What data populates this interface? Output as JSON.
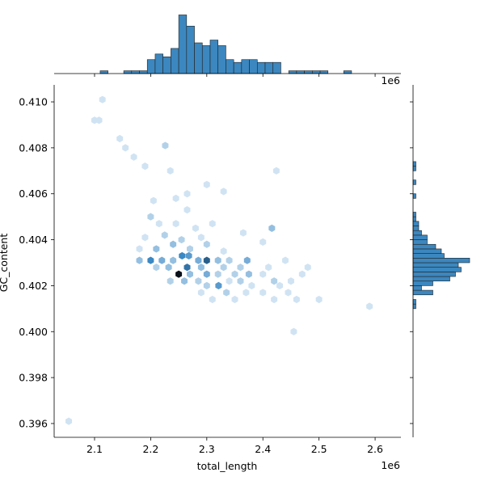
{
  "chart_data": [
    {
      "type": "hexbin",
      "x_label": "total_length",
      "y_label": "GC_content",
      "x_offset_label": "1e6",
      "x": [
        2.054,
        2.114,
        2.1,
        2.108,
        2.145,
        2.155,
        2.17,
        2.226,
        2.235,
        2.19,
        2.265,
        2.245,
        2.3,
        2.33,
        2.424,
        2.205,
        2.265,
        2.2,
        2.215,
        2.245,
        2.28,
        2.31,
        2.19,
        2.225,
        2.255,
        2.29,
        2.365,
        2.416,
        2.18,
        2.21,
        2.24,
        2.27,
        2.3,
        2.33,
        2.4,
        2.18,
        2.2,
        2.22,
        2.24,
        2.285,
        2.3,
        2.32,
        2.34,
        2.372,
        2.44,
        2.256,
        2.268,
        2.21,
        2.232,
        2.265,
        2.29,
        2.33,
        2.36,
        2.41,
        2.48,
        2.25,
        2.27,
        2.3,
        2.32,
        2.35,
        2.375,
        2.4,
        2.47,
        2.235,
        2.26,
        2.285,
        2.34,
        2.36,
        2.42,
        2.45,
        2.321,
        2.3,
        2.38,
        2.43,
        2.29,
        2.335,
        2.4,
        2.445,
        2.37,
        2.31,
        2.35,
        2.42,
        2.5,
        2.46,
        2.59,
        2.455
      ],
      "y": [
        0.3961,
        0.4101,
        0.4092,
        0.4092,
        0.4084,
        0.408,
        0.4076,
        0.4081,
        0.407,
        0.4072,
        0.406,
        0.4058,
        0.4064,
        0.4061,
        0.407,
        0.4057,
        0.4053,
        0.405,
        0.4047,
        0.4047,
        0.4045,
        0.4047,
        0.4041,
        0.4042,
        0.404,
        0.4041,
        0.4043,
        0.4045,
        0.4036,
        0.4036,
        0.4038,
        0.4036,
        0.4038,
        0.4035,
        0.4039,
        0.4031,
        0.4031,
        0.4031,
        0.4031,
        0.4031,
        0.4031,
        0.4031,
        0.4031,
        0.4031,
        0.4031,
        0.4033,
        0.4033,
        0.4028,
        0.4028,
        0.4028,
        0.4028,
        0.4028,
        0.4028,
        0.4028,
        0.4028,
        0.4025,
        0.4025,
        0.4025,
        0.4025,
        0.4025,
        0.4025,
        0.4025,
        0.4025,
        0.4022,
        0.4022,
        0.4022,
        0.4022,
        0.4022,
        0.4022,
        0.4022,
        0.402,
        0.402,
        0.402,
        0.402,
        0.4017,
        0.4017,
        0.4017,
        0.4017,
        0.4017,
        0.4014,
        0.4014,
        0.4014,
        0.4014,
        0.4014,
        0.4011,
        0.4
      ],
      "counts": [
        1,
        1,
        1,
        1,
        1,
        1,
        1,
        2,
        1,
        1,
        1,
        1,
        1,
        1,
        1,
        1,
        1,
        2,
        1,
        1,
        1,
        1,
        1,
        2,
        2,
        1,
        1,
        3,
        1,
        3,
        3,
        2,
        2,
        1,
        1,
        3,
        6,
        4,
        3,
        4,
        8,
        3,
        2,
        4,
        1,
        6,
        5,
        2,
        3,
        7,
        3,
        2,
        2,
        1,
        1,
        12,
        3,
        4,
        2,
        2,
        3,
        1,
        1,
        2,
        3,
        2,
        1,
        2,
        2,
        1,
        5,
        2,
        1,
        1,
        1,
        2,
        1,
        1,
        1,
        1,
        1,
        1,
        1,
        1,
        1,
        1
      ],
      "cmap": [
        "#eef5fc",
        "#3a88c4",
        "#08101a"
      ],
      "xlim": [
        2.028,
        2.646
      ],
      "ylim": [
        0.3954,
        0.41074
      ],
      "xticks": [
        2.1,
        2.2,
        2.3,
        2.4,
        2.5,
        2.6
      ],
      "yticks": [
        {
          "value": 0.396,
          "label": "0.396"
        },
        {
          "value": 0.398,
          "label": "0.398"
        },
        {
          "value": 0.4,
          "label": "0.400"
        },
        {
          "value": 0.402,
          "label": "0.402"
        },
        {
          "value": 0.404,
          "label": "0.404"
        },
        {
          "value": 0.406,
          "label": "0.406"
        },
        {
          "value": 0.408,
          "label": "0.408"
        },
        {
          "value": 0.41,
          "label": "0.410"
        }
      ]
    },
    {
      "type": "histogram",
      "orientation": "vertical",
      "x_offset_label": "1e6",
      "color": "#3c87bf",
      "edgecolor": "#222222",
      "bins": [
        2.054,
        2.068,
        2.082,
        2.096,
        2.11,
        2.124,
        2.138,
        2.152,
        2.166,
        2.18,
        2.194,
        2.208,
        2.222,
        2.236,
        2.25,
        2.264,
        2.278,
        2.292,
        2.306,
        2.32,
        2.334,
        2.348,
        2.362,
        2.376,
        2.39,
        2.404,
        2.418,
        2.432,
        2.446,
        2.46,
        2.474,
        2.488,
        2.502,
        2.516,
        2.53,
        2.544,
        2.558,
        2.572,
        2.586,
        2.6
      ],
      "counts": [
        0,
        0,
        0,
        0,
        1,
        0,
        0,
        1,
        1,
        1,
        5,
        7,
        6,
        9,
        21,
        17,
        11,
        10,
        12,
        10,
        5,
        4,
        5,
        5,
        4,
        4,
        4,
        0,
        1,
        1,
        1,
        1,
        1,
        0,
        0,
        1,
        0,
        0,
        0
      ],
      "ylim": [
        0,
        22
      ]
    },
    {
      "type": "histogram",
      "orientation": "horizontal",
      "color": "#3c87bf",
      "edgecolor": "#222222",
      "bins": [
        0.401,
        0.4012,
        0.4014,
        0.4016,
        0.4018,
        0.402,
        0.4022,
        0.4024,
        0.4026,
        0.4028,
        0.403,
        0.4032,
        0.4034,
        0.4036,
        0.4038,
        0.404,
        0.4042,
        0.4044,
        0.4046,
        0.4048,
        0.405,
        0.4052,
        0.4054,
        0.4056,
        0.4058,
        0.406,
        0.4062,
        0.4064,
        0.4066,
        0.4068,
        0.407,
        0.4072,
        0.4074,
        0.4076,
        0.4078
      ],
      "counts": [
        1,
        1,
        0,
        7,
        3,
        7,
        13,
        15,
        17,
        16,
        20,
        11,
        10,
        8,
        5,
        5,
        3,
        2,
        2,
        1,
        1,
        0,
        0,
        0,
        1,
        0,
        0,
        1,
        0,
        0,
        1,
        1,
        0,
        0
      ],
      "xlim": [
        0,
        24
      ]
    }
  ]
}
